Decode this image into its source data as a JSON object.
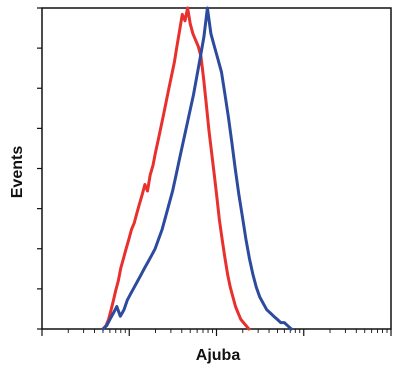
{
  "chart_data": {
    "type": "line",
    "title": "",
    "xlabel": "Ajuba",
    "ylabel": "Events",
    "x_scale": "log",
    "xlim": [
      1,
      10000
    ],
    "ylim": [
      0,
      100
    ],
    "grid": false,
    "legend": "none",
    "series": [
      {
        "color": "#e8302c",
        "x": [
          5.0,
          5.4,
          5.8,
          6.2,
          6.6,
          7.0,
          7.5,
          8.0,
          8.6,
          9.2,
          9.9,
          10.6,
          11.4,
          12.2,
          13.1,
          14.1,
          15.1,
          16.2,
          17.4,
          18.7,
          20.0,
          21.5,
          23.1,
          24.8,
          26.6,
          28.5,
          30.6,
          32.8,
          35.2,
          37.8,
          40.5,
          43.5,
          46.7,
          50.1,
          53.7,
          57.6,
          61.8,
          66.3,
          71.1,
          76.3,
          81.9,
          87.9,
          94.3,
          101,
          108,
          116,
          125,
          134,
          144,
          154,
          165,
          177,
          190,
          204,
          219,
          235
        ],
        "y": [
          0,
          1,
          3,
          6,
          9,
          12,
          15,
          19,
          22,
          25,
          28,
          31,
          33,
          36,
          39,
          42,
          45,
          43,
          48,
          51,
          55,
          59,
          63,
          67,
          71,
          75,
          79,
          83,
          88,
          93,
          98,
          96,
          100,
          95,
          92,
          90,
          88,
          85,
          78,
          70,
          62,
          55,
          48,
          41,
          34,
          28,
          22,
          17,
          13,
          10,
          7,
          5,
          3,
          2,
          1,
          0
        ]
      },
      {
        "color": "#2c4a9e",
        "x": [
          5.0,
          5.5,
          6.0,
          6.6,
          7.2,
          7.9,
          8.7,
          9.5,
          10.4,
          11.4,
          12.5,
          13.7,
          15.0,
          16.5,
          18.1,
          19.8,
          21.7,
          23.8,
          26.1,
          28.6,
          31.4,
          34.4,
          37.7,
          41.3,
          45.3,
          49.7,
          54.5,
          59.7,
          65.5,
          71.8,
          78.7,
          86.3,
          94.6,
          104,
          114,
          125,
          137,
          150,
          164,
          180,
          198,
          217,
          238,
          261,
          286,
          313,
          343,
          376,
          413,
          453,
          497,
          545,
          598,
          656,
          720
        ],
        "y": [
          0,
          1,
          3,
          5,
          7,
          4,
          6,
          9,
          11,
          13,
          15,
          17,
          19,
          21,
          23,
          25,
          28,
          31,
          35,
          39,
          43,
          48,
          53,
          58,
          63,
          68,
          73,
          79,
          85,
          91,
          100,
          92,
          88,
          84,
          80,
          73,
          66,
          58,
          50,
          42,
          35,
          28,
          22,
          17,
          13,
          10,
          8,
          6,
          5,
          4,
          3,
          2,
          2,
          1,
          0
        ]
      }
    ]
  }
}
